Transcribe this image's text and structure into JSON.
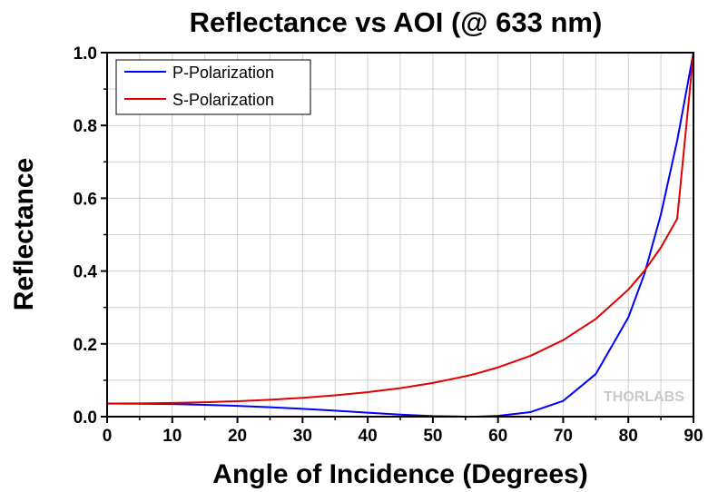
{
  "chart_data": {
    "type": "line",
    "title": "Reflectance vs AOI (@ 633 nm)",
    "xlabel": "Angle of Incidence (Degrees)",
    "ylabel": "Reflectance",
    "xlim": [
      0,
      90
    ],
    "ylim": [
      0,
      1.0
    ],
    "x_ticks": [
      0,
      10,
      20,
      30,
      40,
      50,
      60,
      70,
      80,
      90
    ],
    "y_ticks": [
      0.0,
      0.2,
      0.4,
      0.6,
      0.8,
      1.0
    ],
    "y_tick_labels": [
      "0.0",
      "0.2",
      "0.4",
      "0.6",
      "0.8",
      "1.0"
    ],
    "grid": true,
    "legend_position": "top-left",
    "watermark": "THORLABS",
    "x": [
      0,
      5,
      10,
      15,
      20,
      25,
      30,
      35,
      40,
      45,
      50,
      55,
      56.6,
      60,
      65,
      70,
      75,
      80,
      82.5,
      85,
      87.5,
      90
    ],
    "series": [
      {
        "name": "P-Polarization",
        "color": "#0000ff",
        "values": [
          0.036,
          0.0356,
          0.0345,
          0.0325,
          0.0297,
          0.026,
          0.0215,
          0.0164,
          0.0109,
          0.0056,
          0.0016,
          0.0001,
          0.0,
          0.0021,
          0.0125,
          0.0433,
          0.117,
          0.2725,
          0.3936,
          0.5555,
          0.7582,
          1.0
        ]
      },
      {
        "name": "S-Polarization",
        "color": "#e00000",
        "values": [
          0.036,
          0.0364,
          0.0376,
          0.0396,
          0.0425,
          0.0465,
          0.0517,
          0.0585,
          0.0672,
          0.0783,
          0.0926,
          0.1111,
          0.1179,
          0.1353,
          0.1673,
          0.2103,
          0.2683,
          0.3487,
          0.4013,
          0.4648,
          0.5436,
          1.0
        ]
      }
    ]
  }
}
